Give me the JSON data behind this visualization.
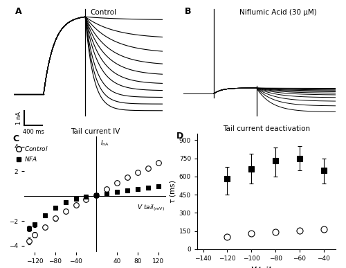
{
  "panel_A_title": "Control",
  "panel_B_title": "Niflumic Acid (30 μM)",
  "panel_C_title": "Tail current IV",
  "panel_D_title": "Tail current deactivation",
  "scalebar_current": "1 nA",
  "scalebar_time": "400 ms",
  "IV_control_x": [
    -130,
    -120,
    -100,
    -80,
    -60,
    -40,
    -20,
    0,
    20,
    40,
    60,
    80,
    100,
    120
  ],
  "IV_control_y": [
    -3.6,
    -3.1,
    -2.5,
    -1.8,
    -1.2,
    -0.7,
    -0.25,
    0.05,
    0.55,
    1.05,
    1.55,
    1.9,
    2.25,
    2.7
  ],
  "IV_control_yerr": [
    0.28,
    0.22,
    0.18,
    0.18,
    0.14,
    0.1,
    0.08,
    0.08,
    0.08,
    0.08,
    0.08,
    0.1,
    0.1,
    0.14
  ],
  "IV_nfa_x": [
    -130,
    -120,
    -100,
    -80,
    -60,
    -40,
    -20,
    0,
    20,
    40,
    60,
    80,
    100,
    120
  ],
  "IV_nfa_y": [
    -2.6,
    -2.3,
    -1.55,
    -0.95,
    -0.5,
    -0.22,
    -0.05,
    0.05,
    0.2,
    0.35,
    0.48,
    0.58,
    0.68,
    0.82
  ],
  "IV_nfa_yerr": [
    0.22,
    0.18,
    0.14,
    0.1,
    0.08,
    0.07,
    0.05,
    0.05,
    0.05,
    0.05,
    0.05,
    0.06,
    0.07,
    0.09
  ],
  "tau_control_x": [
    -120,
    -100,
    -80,
    -60,
    -40
  ],
  "tau_control_y": [
    100,
    130,
    140,
    155,
    165
  ],
  "tau_nfa_x": [
    -120,
    -100,
    -80,
    -60,
    -40
  ],
  "tau_nfa_y": [
    580,
    660,
    730,
    750,
    650
  ],
  "tau_nfa_yerr_lo": [
    130,
    120,
    130,
    100,
    110
  ],
  "tau_nfa_yerr_hi": [
    100,
    130,
    110,
    100,
    100
  ],
  "background_color": "#ffffff"
}
